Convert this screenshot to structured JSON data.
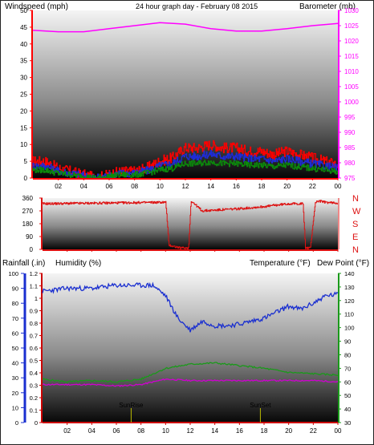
{
  "header": {
    "left": "Windspeed (mph)",
    "center": "24 hour graph day - February 08 2015",
    "right": "Barometer (mb)"
  },
  "colors": {
    "wind_red": "#ff0000",
    "wind_blue": "#1f2bd6",
    "wind_green": "#0b8a0b",
    "baro": "#ff00ff",
    "title_yellow": "#e6e600",
    "dir_red": "#dd1111",
    "humidity": "#1a2fd0",
    "temperature": "#1a9a1a",
    "dewpoint": "#d000d0",
    "rainfall": "#cc0000",
    "sun_marker": "#bbbb00"
  },
  "x_ticks": [
    "02",
    "04",
    "06",
    "08",
    "10",
    "12",
    "14",
    "16",
    "18",
    "20",
    "22",
    "00"
  ],
  "panel1": {
    "wind_ticks": [
      "0",
      "5",
      "10",
      "15",
      "20",
      "25",
      "30",
      "35",
      "40",
      "45",
      "50"
    ],
    "wind_range": [
      0,
      50
    ],
    "baro_ticks": [
      "975",
      "980",
      "985",
      "990",
      "995",
      "1000",
      "1005",
      "1010",
      "1015",
      "1020",
      "1025",
      "1030"
    ],
    "baro_range": [
      975,
      1030
    ]
  },
  "panel2": {
    "dir_ticks": [
      "0",
      "90",
      "180",
      "270",
      "360"
    ],
    "compass": [
      "N",
      "W",
      "S",
      "E",
      "N"
    ]
  },
  "panel3": {
    "label_rain": "Rainfall (.in)",
    "label_humidity": "Humidity (%)",
    "label_temp": "Temperature (°F)",
    "label_dew": "Dew Point (°F)",
    "humidity_ticks": [
      "0",
      "10",
      "20",
      "30",
      "40",
      "50",
      "60",
      "70",
      "80",
      "90",
      "100"
    ],
    "rain_ticks": [
      "0",
      "0.1",
      "0.2",
      "0.3",
      "0.4",
      "0.5",
      "0.6",
      "0.7",
      "0.8",
      "0.9",
      "1",
      "1.1",
      "1.2"
    ],
    "temp_ticks": [
      "30",
      "40",
      "50",
      "60",
      "70",
      "80",
      "90",
      "100",
      "110",
      "120",
      "130",
      "140"
    ],
    "sunrise": "SunRise",
    "sunset": "SunSet"
  },
  "chart_data": [
    {
      "type": "line",
      "series": [
        {
          "name": "Windspeed (mph)",
          "x": [
            0,
            1,
            2,
            3,
            4,
            5,
            6,
            7,
            8,
            9,
            10,
            11,
            12,
            13,
            14,
            15,
            16,
            17,
            18,
            19,
            20,
            21,
            22,
            23,
            24
          ],
          "values": [
            5,
            5,
            3,
            2,
            1,
            0,
            1,
            2,
            2,
            3,
            5,
            6,
            9,
            9,
            10,
            9,
            9,
            8,
            8,
            7,
            8,
            7,
            6,
            5,
            4
          ]
        },
        {
          "name": "Barometer (mb)",
          "x": [
            0,
            2,
            4,
            6,
            8,
            10,
            12,
            14,
            16,
            18,
            20,
            22,
            24
          ],
          "values": [
            1023.5,
            1023,
            1023,
            1024,
            1025,
            1026,
            1025.5,
            1024,
            1023.2,
            1023.2,
            1024,
            1025,
            1025.7
          ]
        }
      ],
      "xlim": [
        0,
        24
      ],
      "wind_ylim": [
        0,
        50
      ],
      "baro_ylim": [
        975,
        1030
      ]
    },
    {
      "type": "line",
      "series": [
        {
          "x": [
            0,
            9.9,
            10.05,
            10.3,
            11.2,
            11.9,
            12.1,
            13,
            14,
            16,
            18,
            20,
            21.2,
            21.4,
            21.8,
            22.2,
            22.5,
            23,
            24
          ],
          "values": [
            320,
            330,
            330,
            30,
            10,
            10,
            340,
            270,
            275,
            285,
            300,
            320,
            320,
            10,
            10,
            330,
            340,
            330,
            325
          ]
        }
      ],
      "ylim": [
        0,
        360
      ]
    },
    {
      "type": "line",
      "series": [
        {
          "name": "Humidity (%)",
          "x": [
            0,
            2,
            4,
            6,
            8,
            9,
            10,
            11,
            12,
            13,
            14,
            15,
            16,
            17,
            18,
            19,
            20,
            21,
            22,
            23,
            24
          ],
          "values": [
            88,
            90,
            90,
            92,
            92,
            92,
            85,
            70,
            62,
            68,
            65,
            65,
            66,
            68,
            70,
            74,
            78,
            76,
            80,
            85,
            86
          ]
        },
        {
          "name": "Temperature (°F)",
          "x": [
            0,
            2,
            4,
            6,
            8,
            10,
            12,
            14,
            16,
            18,
            20,
            22,
            24
          ],
          "values": [
            62,
            60,
            61,
            60,
            62,
            70,
            73,
            74,
            72,
            70,
            67,
            66,
            65
          ]
        },
        {
          "name": "Dew Point (°F)",
          "x": [
            0,
            2,
            4,
            6,
            8,
            10,
            12,
            14,
            16,
            18,
            20,
            22,
            24
          ],
          "values": [
            58,
            58,
            58,
            57,
            58,
            62,
            61,
            61,
            61,
            61,
            61,
            61,
            60
          ]
        },
        {
          "name": "Rainfall (.in)",
          "x": [
            0,
            24
          ],
          "values": [
            0,
            0
          ]
        }
      ],
      "humidity_ylim": [
        0,
        100
      ],
      "rain_ylim": [
        0,
        1.2
      ],
      "temp_ylim": [
        30,
        140
      ],
      "sunrise_hour": 7.2,
      "sunset_hour": 17.7
    }
  ]
}
